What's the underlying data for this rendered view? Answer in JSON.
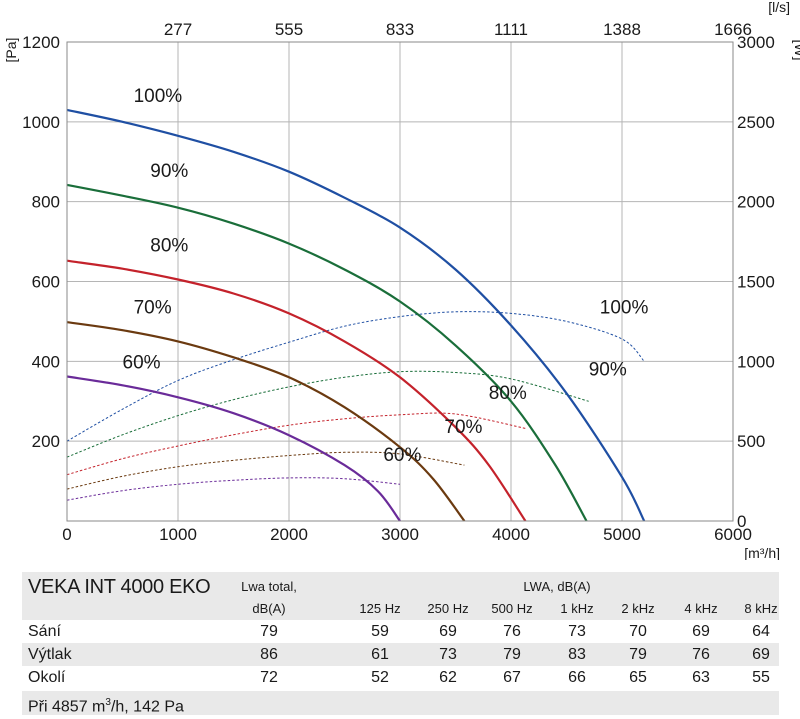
{
  "chart_data": {
    "type": "line",
    "x_axis": {
      "unit": "[m³/h]",
      "ticks": [
        0,
        1000,
        2000,
        3000,
        4000,
        5000,
        6000
      ],
      "range": [
        0,
        6000
      ]
    },
    "x2_axis": {
      "unit": "[l/s]",
      "ticks": [
        "277",
        "555",
        "833",
        "1111",
        "1388",
        "1666"
      ]
    },
    "y_axis": {
      "unit": "[Pa]",
      "ticks": [
        200,
        400,
        600,
        800,
        1000,
        1200
      ],
      "range": [
        0,
        1200
      ]
    },
    "y2_axis": {
      "unit": "[W]",
      "ticks": [
        0,
        500,
        1000,
        1500,
        2000,
        2500,
        3000
      ],
      "range": [
        0,
        3000
      ]
    },
    "grid": true,
    "pressure_series": [
      {
        "name": "100%",
        "color": "#1f4fa3",
        "points": [
          [
            0,
            1030
          ],
          [
            500,
            1000
          ],
          [
            1000,
            965
          ],
          [
            1500,
            925
          ],
          [
            2000,
            875
          ],
          [
            2500,
            810
          ],
          [
            3000,
            735
          ],
          [
            3500,
            630
          ],
          [
            4000,
            490
          ],
          [
            4500,
            320
          ],
          [
            5000,
            110
          ],
          [
            5200,
            0
          ]
        ]
      },
      {
        "name": "90%",
        "color": "#1a6e3a",
        "points": [
          [
            0,
            842
          ],
          [
            500,
            815
          ],
          [
            1000,
            785
          ],
          [
            1500,
            745
          ],
          [
            2000,
            695
          ],
          [
            2500,
            630
          ],
          [
            3000,
            550
          ],
          [
            3500,
            440
          ],
          [
            4000,
            300
          ],
          [
            4400,
            140
          ],
          [
            4680,
            0
          ]
        ]
      },
      {
        "name": "80%",
        "color": "#c4222b",
        "points": [
          [
            0,
            652
          ],
          [
            500,
            632
          ],
          [
            1000,
            605
          ],
          [
            1500,
            570
          ],
          [
            2000,
            520
          ],
          [
            2500,
            450
          ],
          [
            3000,
            360
          ],
          [
            3500,
            235
          ],
          [
            3800,
            140
          ],
          [
            4130,
            0
          ]
        ]
      },
      {
        "name": "70%",
        "color": "#6b3a10",
        "points": [
          [
            0,
            498
          ],
          [
            500,
            478
          ],
          [
            1000,
            450
          ],
          [
            1500,
            410
          ],
          [
            2000,
            360
          ],
          [
            2500,
            285
          ],
          [
            3000,
            185
          ],
          [
            3300,
            105
          ],
          [
            3580,
            0
          ]
        ]
      },
      {
        "name": "60%",
        "color": "#6a2b99",
        "points": [
          [
            0,
            362
          ],
          [
            500,
            340
          ],
          [
            1000,
            310
          ],
          [
            1500,
            270
          ],
          [
            2000,
            215
          ],
          [
            2500,
            140
          ],
          [
            2800,
            75
          ],
          [
            3000,
            0
          ]
        ]
      }
    ],
    "power_series": [
      {
        "name": "100%",
        "color": "#1f4fa3",
        "points": [
          [
            0,
            500
          ],
          [
            500,
            700
          ],
          [
            1000,
            880
          ],
          [
            1500,
            1010
          ],
          [
            2000,
            1120
          ],
          [
            2500,
            1220
          ],
          [
            3000,
            1280
          ],
          [
            3500,
            1310
          ],
          [
            4000,
            1300
          ],
          [
            4500,
            1250
          ],
          [
            5000,
            1140
          ],
          [
            5200,
            1000
          ]
        ]
      },
      {
        "name": "90%",
        "color": "#1a6e3a",
        "points": [
          [
            0,
            400
          ],
          [
            500,
            540
          ],
          [
            1000,
            660
          ],
          [
            1500,
            760
          ],
          [
            2000,
            840
          ],
          [
            2500,
            900
          ],
          [
            3000,
            935
          ],
          [
            3500,
            930
          ],
          [
            4000,
            890
          ],
          [
            4700,
            750
          ]
        ]
      },
      {
        "name": "80%",
        "color": "#c4222b",
        "points": [
          [
            0,
            290
          ],
          [
            500,
            390
          ],
          [
            1000,
            470
          ],
          [
            1500,
            540
          ],
          [
            2000,
            600
          ],
          [
            2500,
            640
          ],
          [
            3000,
            665
          ],
          [
            3500,
            670
          ],
          [
            4130,
            580
          ]
        ]
      },
      {
        "name": "70%",
        "color": "#6b3a10",
        "points": [
          [
            0,
            200
          ],
          [
            500,
            280
          ],
          [
            1000,
            340
          ],
          [
            1500,
            380
          ],
          [
            2000,
            410
          ],
          [
            2500,
            430
          ],
          [
            3000,
            420
          ],
          [
            3580,
            350
          ]
        ]
      },
      {
        "name": "60%",
        "color": "#6a2b99",
        "points": [
          [
            0,
            130
          ],
          [
            500,
            190
          ],
          [
            1000,
            230
          ],
          [
            1500,
            255
          ],
          [
            2000,
            270
          ],
          [
            2500,
            265
          ],
          [
            3000,
            230
          ]
        ]
      }
    ],
    "pressure_labels": [
      {
        "text": "100%",
        "x": 600,
        "y": 1030
      },
      {
        "text": "90%",
        "x": 750,
        "y": 842
      },
      {
        "text": "80%",
        "x": 750,
        "y": 655
      },
      {
        "text": "70%",
        "x": 600,
        "y": 500
      },
      {
        "text": "60%",
        "x": 500,
        "y": 362
      },
      {
        "text": "100%",
        "x": 4800,
        "y": 500
      },
      {
        "text": "90%",
        "x": 4700,
        "y": 345
      },
      {
        "text": "80%",
        "x": 3800,
        "y": 285
      },
      {
        "text": "70%",
        "x": 3400,
        "y": 200
      },
      {
        "text": "60%",
        "x": 2850,
        "y": 130
      }
    ]
  },
  "table": {
    "title": "VEKA INT 4000 EKO",
    "lwa_total_header_1": "Lwa total,",
    "lwa_total_header_2": "dB(A)",
    "lwa_header": "LWA, dB(A)",
    "bands": [
      "125  Hz",
      "250  Hz",
      "500  Hz",
      "1 kHz",
      "2 kHz",
      "4 kHz",
      "8 kHz"
    ],
    "rows": [
      {
        "label": "Sání",
        "total": "79",
        "values": [
          "59",
          "69",
          "76",
          "73",
          "70",
          "69",
          "64"
        ]
      },
      {
        "label": "Výtlak",
        "total": "86",
        "values": [
          "61",
          "73",
          "79",
          "83",
          "79",
          "76",
          "69"
        ]
      },
      {
        "label": "Okolí",
        "total": "72",
        "values": [
          "52",
          "62",
          "67",
          "66",
          "65",
          "63",
          "55"
        ]
      }
    ],
    "footer_prefix": "Při 4857  m",
    "footer_sup": "3",
    "footer_suffix": "/h,  142  Pa"
  }
}
